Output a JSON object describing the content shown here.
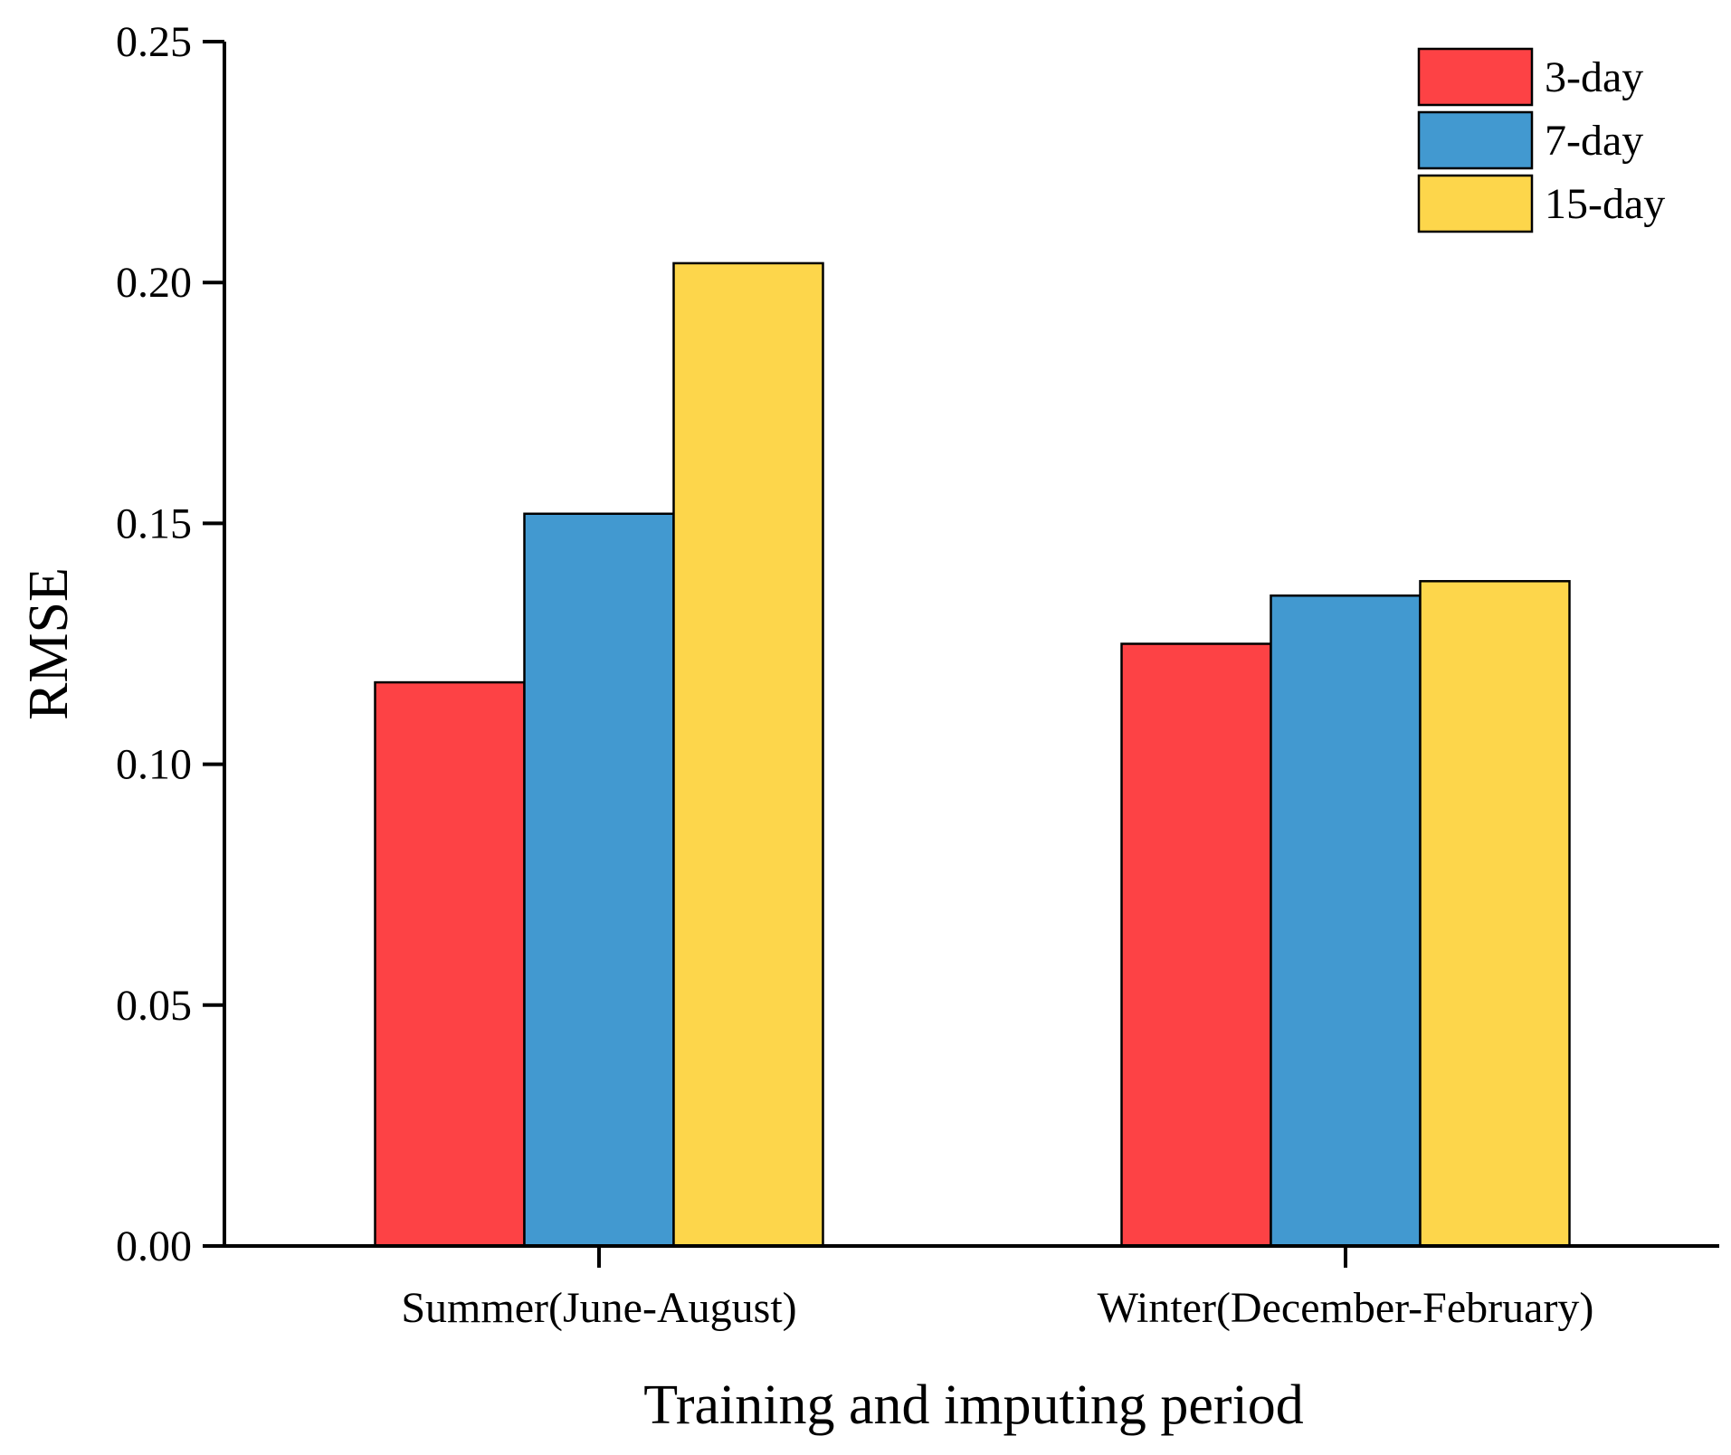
{
  "chart_data": {
    "type": "bar",
    "title": "",
    "xlabel": "Training and imputing period",
    "ylabel": "RMSE",
    "categories": [
      "Summer(June-August)",
      "Winter(December-February)"
    ],
    "series": [
      {
        "name": "3-day",
        "color": "#fd4245",
        "values": [
          0.117,
          0.125
        ]
      },
      {
        "name": "7-day",
        "color": "#4299d0",
        "values": [
          0.152,
          0.135
        ]
      },
      {
        "name": "15-day",
        "color": "#fdd64b",
        "values": [
          0.204,
          0.138
        ]
      }
    ],
    "ylim": [
      0,
      0.25
    ],
    "yticks": [
      "0.00",
      "0.05",
      "0.10",
      "0.15",
      "0.20",
      "0.25"
    ],
    "grid": false,
    "legend_position": "top-right"
  }
}
